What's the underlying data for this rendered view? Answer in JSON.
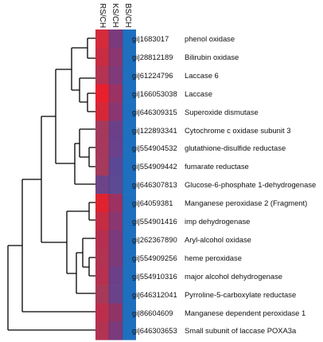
{
  "heatmap": {
    "columns": [
      "RS/CH",
      "KS/CH",
      "BS/CH"
    ],
    "rows": [
      {
        "id": "gi|1683017",
        "name": "phenol oxidase"
      },
      {
        "id": "gi|28812189",
        "name": "Bilirubin oxidase"
      },
      {
        "id": "gi|61224796",
        "name": "Laccase 6"
      },
      {
        "id": "gi|166053038",
        "name": "Laccase"
      },
      {
        "id": "gi|646309315",
        "name": "Superoxide dismutase"
      },
      {
        "id": "gi|122893341",
        "name": "Cytochrome c oxidase subunit 3"
      },
      {
        "id": "gi|554904532",
        "name": "glutathione-disulfide reductase"
      },
      {
        "id": "gi|554909442",
        "name": "fumarate reductase"
      },
      {
        "id": "gi|646307813",
        "name": "Glucose-6-phosphate 1-dehydrogenase"
      },
      {
        "id": "gi|64059381",
        "name": "Manganese peroxidase 2 (Fragment)"
      },
      {
        "id": "gi|554901416",
        "name": "imp dehydrogenase"
      },
      {
        "id": "gi|262367890",
        "name": "Aryl-alcohol oxidase"
      },
      {
        "id": "gi|554909256",
        "name": "heme peroxidase"
      },
      {
        "id": "gi|554910316",
        "name": "major alcohol dehydrogenase"
      },
      {
        "id": "gi|646312041",
        "name": "Pyrroline-5-carboxylate reductase"
      },
      {
        "id": "gi|86604609",
        "name": "Manganese dependent peroxidase 1"
      },
      {
        "id": "gi|646303653",
        "name": "Small subunit of laccase POXA3a"
      }
    ],
    "cell_colors": [
      [
        "#d42a3c",
        "#7b3a7c",
        "#1f6fbf"
      ],
      [
        "#c82c42",
        "#8a3670",
        "#1f6fbf"
      ],
      [
        "#b43352",
        "#7e3a7a",
        "#1f6fbf"
      ],
      [
        "#e8202e",
        "#9a3264",
        "#1f6fbf"
      ],
      [
        "#d42838",
        "#8a3672",
        "#1f6fbf"
      ],
      [
        "#a33a5e",
        "#6c4088",
        "#1f6fbf"
      ],
      [
        "#a6385c",
        "#6a418a",
        "#1f6fbf"
      ],
      [
        "#a53a5c",
        "#5a4896",
        "#1f6fbf"
      ],
      [
        "#6c4488",
        "#5c4a94",
        "#1f6fbf"
      ],
      [
        "#e0222f",
        "#9c3262",
        "#1f6fbf"
      ],
      [
        "#c42c44",
        "#8a3670",
        "#1f6fbf"
      ],
      [
        "#b53050",
        "#7a3a7c",
        "#1f6fbf"
      ],
      [
        "#b23252",
        "#7c3a7a",
        "#1f6fbf"
      ],
      [
        "#b63150",
        "#6c4088",
        "#1f6fbf"
      ],
      [
        "#a63858",
        "#6a428a",
        "#1f6fbf"
      ],
      [
        "#bb2f4c",
        "#903468",
        "#1f6fbf"
      ],
      [
        "#b23252",
        "#7a3a7c",
        "#1f6fbf"
      ]
    ]
  }
}
